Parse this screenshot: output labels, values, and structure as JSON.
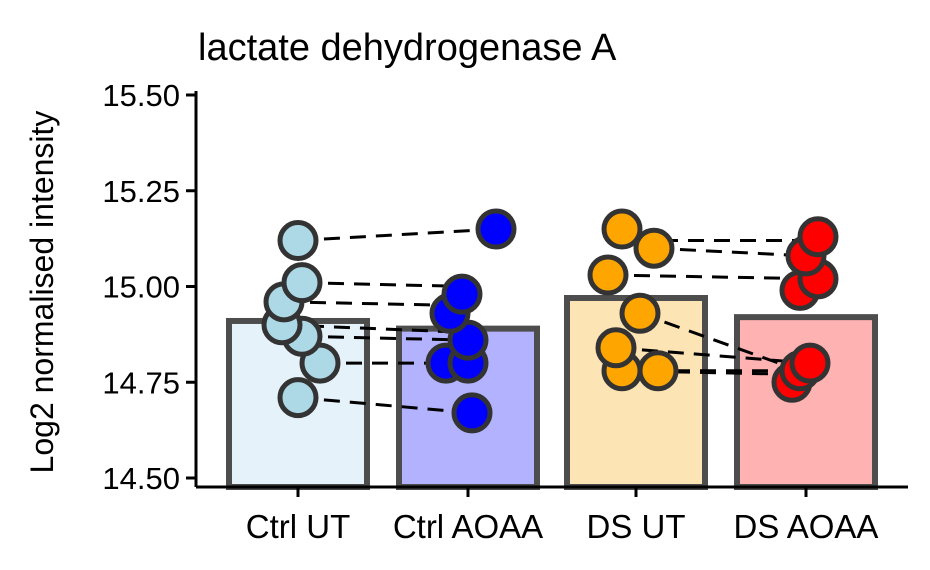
{
  "chart_data": {
    "type": "bar",
    "title": "lactate dehydrogenase A",
    "xlabel": "",
    "ylabel": "Log2 normalised intensity",
    "ylim": [
      14.5,
      15.5
    ],
    "yticks": [
      14.5,
      14.75,
      15.0,
      15.25,
      15.5
    ],
    "ytick_labels": [
      "14.50",
      "14.75",
      "15.00",
      "15.25",
      "15.50"
    ],
    "grid": false,
    "legend": "none",
    "categories": [
      "Ctrl UT",
      "Ctrl AOAA",
      "DS UT",
      "DS AOAA"
    ],
    "bar_values": [
      14.91,
      14.89,
      14.97,
      14.92
    ],
    "bar_colors": [
      "#e6f2f9",
      "#b2b2ff",
      "#fde4b4",
      "#ffb2b2"
    ],
    "point_colors": [
      "#add8e6",
      "#0000ff",
      "#ffa500",
      "#ff0000"
    ],
    "points": [
      [
        14.71,
        14.8,
        14.87,
        14.9,
        14.96,
        15.01,
        15.12
      ],
      [
        14.67,
        14.8,
        14.8,
        14.86,
        14.93,
        14.98,
        15.15
      ],
      [
        14.78,
        14.78,
        14.84,
        14.93,
        15.03,
        15.1,
        15.15
      ],
      [
        14.75,
        14.78,
        14.8,
        14.99,
        15.02,
        15.08,
        15.13
      ]
    ],
    "pairings": [
      {
        "from": [
          0,
          14.71
        ],
        "to": [
          1,
          14.67
        ]
      },
      {
        "from": [
          0,
          14.8
        ],
        "to": [
          1,
          14.8
        ]
      },
      {
        "from": [
          0,
          14.87
        ],
        "to": [
          1,
          14.86
        ]
      },
      {
        "from": [
          0,
          14.9
        ],
        "to": [
          1,
          14.88
        ]
      },
      {
        "from": [
          0,
          14.96
        ],
        "to": [
          1,
          14.95
        ]
      },
      {
        "from": [
          0,
          15.01
        ],
        "to": [
          1,
          15.0
        ]
      },
      {
        "from": [
          0,
          15.12
        ],
        "to": [
          1,
          15.15
        ]
      },
      {
        "from": [
          2,
          14.78
        ],
        "to": [
          3,
          14.78
        ]
      },
      {
        "from": [
          2,
          14.78
        ],
        "to": [
          3,
          14.77
        ]
      },
      {
        "from": [
          2,
          14.84
        ],
        "to": [
          3,
          14.8
        ]
      },
      {
        "from": [
          2,
          14.93
        ],
        "to": [
          3,
          14.78
        ]
      },
      {
        "from": [
          2,
          15.03
        ],
        "to": [
          3,
          15.02
        ]
      },
      {
        "from": [
          2,
          15.1
        ],
        "to": [
          3,
          15.08
        ]
      },
      {
        "from": [
          2,
          15.12
        ],
        "to": [
          3,
          15.12
        ]
      }
    ]
  }
}
